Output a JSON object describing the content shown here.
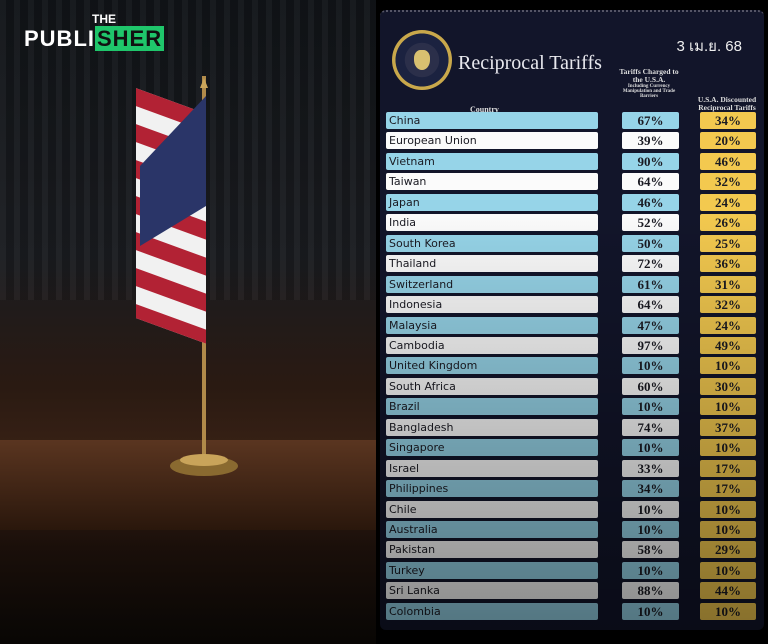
{
  "logo": {
    "the": "THE",
    "publi": "PUBLI",
    "sher": "SHER",
    "accent": "#1fc66b"
  },
  "infographic": {
    "title": "Reciprocal Tariffs",
    "date": "3 เม.ย. 68",
    "columns": {
      "country": "Country",
      "charged": "Tariffs Charged to the U.S.A.",
      "charged_note": "Including Currency Manipulation and Trade Barriers",
      "discounted": "U.S.A. Discounted Reciprocal Tariffs"
    },
    "rows": [
      {
        "country": "China",
        "charged": "67%",
        "discounted": "34%"
      },
      {
        "country": "European Union",
        "charged": "39%",
        "discounted": "20%"
      },
      {
        "country": "Vietnam",
        "charged": "90%",
        "discounted": "46%"
      },
      {
        "country": "Taiwan",
        "charged": "64%",
        "discounted": "32%"
      },
      {
        "country": "Japan",
        "charged": "46%",
        "discounted": "24%"
      },
      {
        "country": "India",
        "charged": "52%",
        "discounted": "26%"
      },
      {
        "country": "South Korea",
        "charged": "50%",
        "discounted": "25%"
      },
      {
        "country": "Thailand",
        "charged": "72%",
        "discounted": "36%"
      },
      {
        "country": "Switzerland",
        "charged": "61%",
        "discounted": "31%"
      },
      {
        "country": "Indonesia",
        "charged": "64%",
        "discounted": "32%"
      },
      {
        "country": "Malaysia",
        "charged": "47%",
        "discounted": "24%"
      },
      {
        "country": "Cambodia",
        "charged": "97%",
        "discounted": "49%"
      },
      {
        "country": "United Kingdom",
        "charged": "10%",
        "discounted": "10%"
      },
      {
        "country": "South Africa",
        "charged": "60%",
        "discounted": "30%"
      },
      {
        "country": "Brazil",
        "charged": "10%",
        "discounted": "10%"
      },
      {
        "country": "Bangladesh",
        "charged": "74%",
        "discounted": "37%"
      },
      {
        "country": "Singapore",
        "charged": "10%",
        "discounted": "10%"
      },
      {
        "country": "Israel",
        "charged": "33%",
        "discounted": "17%"
      },
      {
        "country": "Philippines",
        "charged": "34%",
        "discounted": "17%"
      },
      {
        "country": "Chile",
        "charged": "10%",
        "discounted": "10%"
      },
      {
        "country": "Australia",
        "charged": "10%",
        "discounted": "10%"
      },
      {
        "country": "Pakistan",
        "charged": "58%",
        "discounted": "29%"
      },
      {
        "country": "Turkey",
        "charged": "10%",
        "discounted": "10%"
      },
      {
        "country": "Sri Lanka",
        "charged": "88%",
        "discounted": "44%"
      },
      {
        "country": "Colombia",
        "charged": "10%",
        "discounted": "10%"
      }
    ]
  }
}
